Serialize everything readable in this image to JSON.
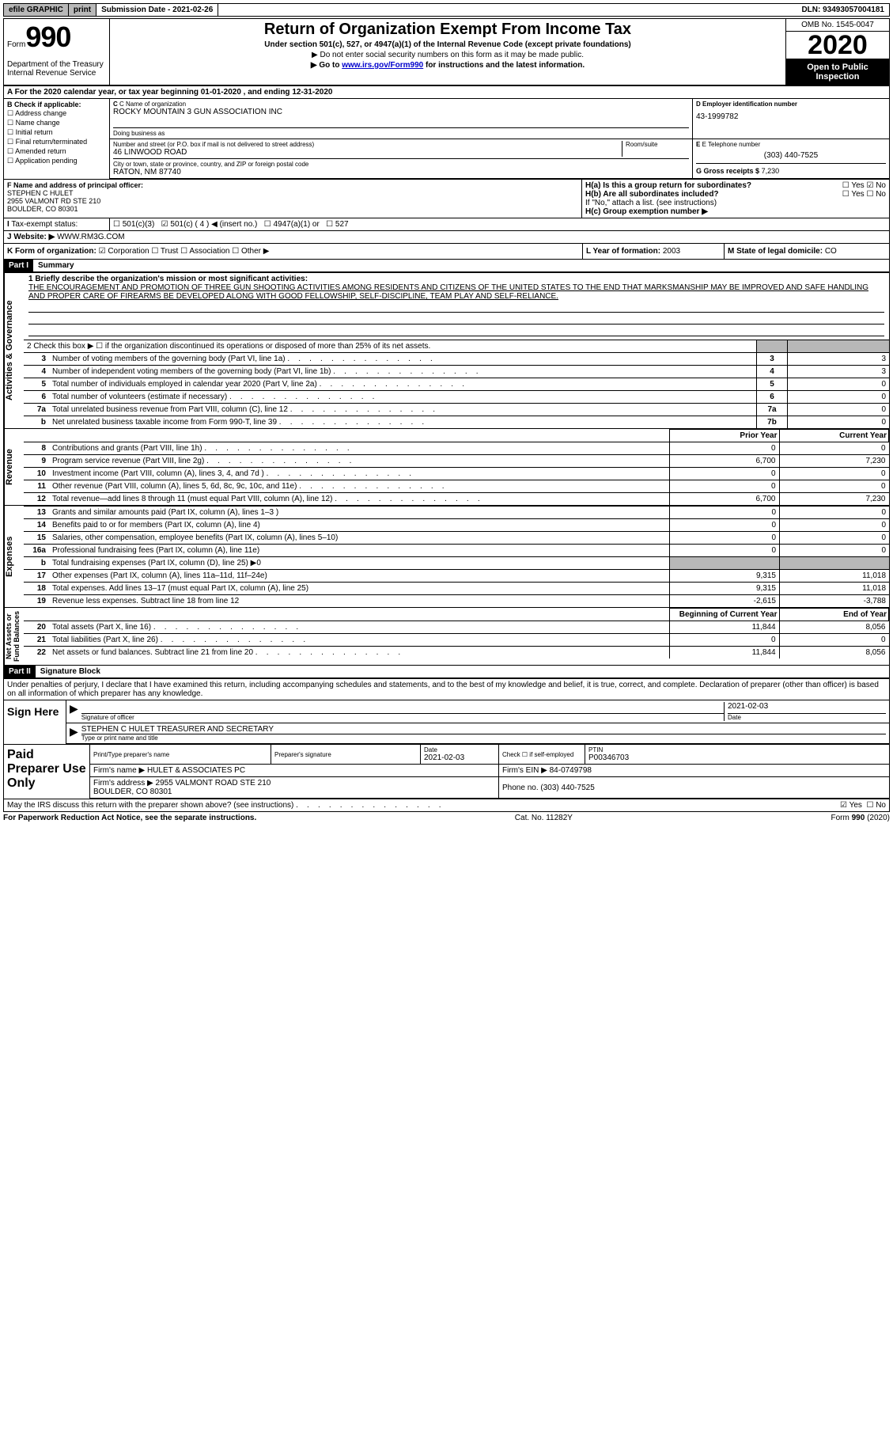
{
  "top_bar": {
    "efile": "efile GRAPHIC",
    "print": "print",
    "submission_label": "Submission Date -",
    "submission_date": "2021-02-26",
    "dln_label": "DLN:",
    "dln": "93493057004181"
  },
  "header": {
    "form_label": "Form",
    "form_number": "990",
    "title": "Return of Organization Exempt From Income Tax",
    "subtitle": "Under section 501(c), 527, or 4947(a)(1) of the Internal Revenue Code (except private foundations)",
    "note1": "▶ Do not enter social security numbers on this form as it may be made public.",
    "note2_pre": "▶ Go to ",
    "note2_link": "www.irs.gov/Form990",
    "note2_post": " for instructions and the latest information.",
    "dept": "Department of the Treasury\nInternal Revenue Service",
    "omb": "OMB No. 1545-0047",
    "year": "2020",
    "open_public": "Open to Public Inspection"
  },
  "line_a": "A For the 2020 calendar year, or tax year beginning 01-01-2020    , and ending 12-31-2020",
  "section_b": {
    "title": "B Check if applicable:",
    "opts": [
      "Address change",
      "Name change",
      "Initial return",
      "Final return/terminated",
      "Amended return",
      "Application pending"
    ]
  },
  "section_c": {
    "name_lbl": "C Name of organization",
    "name": "ROCKY MOUNTAIN 3 GUN ASSOCIATION INC",
    "dba_lbl": "Doing business as",
    "dba": "",
    "addr_lbl": "Number and street (or P.O. box if mail is not delivered to street address)",
    "room_lbl": "Room/suite",
    "addr": "46 LINWOOD ROAD",
    "city_lbl": "City or town, state or province, country, and ZIP or foreign postal code",
    "city": "RATON, NM    87740"
  },
  "section_d": {
    "ein_lbl": "D Employer identification number",
    "ein": "43-1999782",
    "phone_lbl": "E Telephone number",
    "phone": "(303) 440-7525",
    "gross_lbl": "G Gross receipts $",
    "gross": "7,230"
  },
  "section_f": {
    "lbl": "F Name and address of principal officer:",
    "name": "STEPHEN C HULET",
    "addr1": "2955 VALMONT RD STE 210",
    "addr2": "BOULDER, CO   80301"
  },
  "section_h": {
    "ha": "H(a)  Is this a group return for subordinates?",
    "hb": "H(b)  Are all subordinates included?",
    "hb_note": "If \"No,\" attach a list. (see instructions)",
    "hc": "H(c)  Group exemption number ▶",
    "yes": "Yes",
    "no": "No"
  },
  "tax_status": {
    "lbl": "Tax-exempt status:",
    "opts": [
      "501(c)(3)",
      "501(c) ( 4 ) ◀ (insert no.)",
      "4947(a)(1) or",
      "527"
    ]
  },
  "website": {
    "lbl": "J   Website: ▶",
    "val": "WWW.RM3G.COM"
  },
  "k_org": {
    "lbl": "K Form of organization:",
    "opts": [
      "Corporation",
      "Trust",
      "Association",
      "Other ▶"
    ],
    "l_lbl": "L Year of formation:",
    "l_val": "2003",
    "m_lbl": "M State of legal domicile:",
    "m_val": "CO"
  },
  "part1": {
    "hdr": "Part I",
    "title": "Summary",
    "mission_lbl": "1   Briefly describe the organization's mission or most significant activities:",
    "mission": "THE ENCOURAGEMENT AND PROMOTION OF THREE GUN SHOOTING ACTIVITIES AMONG RESIDENTS AND CITIZENS OF THE UNITED STATES TO THE END THAT MARKSMANSHIP MAY BE IMPROVED AND SAFE HANDLING AND PROPER CARE OF FIREARMS BE DEVELOPED ALONG WITH GOOD FELLOWSHIP, SELF-DISCIPLINE, TEAM PLAY AND SELF-RELIANCE.",
    "line2": "2    Check this box ▶ ☐  if the organization discontinued its operations or disposed of more than 25% of its net assets.",
    "gov_lines": [
      {
        "n": "3",
        "txt": "Number of voting members of the governing body (Part VI, line 1a)",
        "box": "3",
        "val": "3"
      },
      {
        "n": "4",
        "txt": "Number of independent voting members of the governing body (Part VI, line 1b)",
        "box": "4",
        "val": "3"
      },
      {
        "n": "5",
        "txt": "Total number of individuals employed in calendar year 2020 (Part V, line 2a)",
        "box": "5",
        "val": "0"
      },
      {
        "n": "6",
        "txt": "Total number of volunteers (estimate if necessary)",
        "box": "6",
        "val": "0"
      },
      {
        "n": "7a",
        "txt": "Total unrelated business revenue from Part VIII, column (C), line 12",
        "box": "7a",
        "val": "0"
      },
      {
        "n": "b",
        "txt": "Net unrelated business taxable income from Form 990-T, line 39",
        "box": "7b",
        "val": "0"
      }
    ],
    "col_prior": "Prior Year",
    "col_curr": "Current Year",
    "rev_lines": [
      {
        "n": "8",
        "txt": "Contributions and grants (Part VIII, line 1h)",
        "p": "0",
        "c": "0"
      },
      {
        "n": "9",
        "txt": "Program service revenue (Part VIII, line 2g)",
        "p": "6,700",
        "c": "7,230"
      },
      {
        "n": "10",
        "txt": "Investment income (Part VIII, column (A), lines 3, 4, and 7d )",
        "p": "0",
        "c": "0"
      },
      {
        "n": "11",
        "txt": "Other revenue (Part VIII, column (A), lines 5, 6d, 8c, 9c, 10c, and 11e)",
        "p": "0",
        "c": "0"
      },
      {
        "n": "12",
        "txt": "Total revenue—add lines 8 through 11 (must equal Part VIII, column (A), line 12)",
        "p": "6,700",
        "c": "7,230"
      }
    ],
    "exp_lines": [
      {
        "n": "13",
        "txt": "Grants and similar amounts paid (Part IX, column (A), lines 1–3 )",
        "p": "0",
        "c": "0"
      },
      {
        "n": "14",
        "txt": "Benefits paid to or for members (Part IX, column (A), line 4)",
        "p": "0",
        "c": "0"
      },
      {
        "n": "15",
        "txt": "Salaries, other compensation, employee benefits (Part IX, column (A), lines 5–10)",
        "p": "0",
        "c": "0"
      },
      {
        "n": "16a",
        "txt": "Professional fundraising fees (Part IX, column (A), line 11e)",
        "p": "0",
        "c": "0"
      },
      {
        "n": "b",
        "txt": "Total fundraising expenses (Part IX, column (D), line 25) ▶0",
        "p": "",
        "c": "",
        "shaded": true
      },
      {
        "n": "17",
        "txt": "Other expenses (Part IX, column (A), lines 11a–11d, 11f–24e)",
        "p": "9,315",
        "c": "11,018"
      },
      {
        "n": "18",
        "txt": "Total expenses. Add lines 13–17 (must equal Part IX, column (A), line 25)",
        "p": "9,315",
        "c": "11,018"
      },
      {
        "n": "19",
        "txt": "Revenue less expenses. Subtract line 18 from line 12",
        "p": "-2,615",
        "c": "-3,788"
      }
    ],
    "col_boy": "Beginning of Current Year",
    "col_eoy": "End of Year",
    "na_lines": [
      {
        "n": "20",
        "txt": "Total assets (Part X, line 16)",
        "p": "11,844",
        "c": "8,056"
      },
      {
        "n": "21",
        "txt": "Total liabilities (Part X, line 26)",
        "p": "0",
        "c": "0"
      },
      {
        "n": "22",
        "txt": "Net assets or fund balances. Subtract line 21 from line 20",
        "p": "11,844",
        "c": "8,056"
      }
    ],
    "vtab_gov": "Activities & Governance",
    "vtab_rev": "Revenue",
    "vtab_exp": "Expenses",
    "vtab_na": "Net Assets or\nFund Balances"
  },
  "part2": {
    "hdr": "Part II",
    "title": "Signature Block",
    "declare": "Under penalties of perjury, I declare that I have examined this return, including accompanying schedules and statements, and to the best of my knowledge and belief, it is true, correct, and complete. Declaration of preparer (other than officer) is based on all information of which preparer has any knowledge.",
    "sign_here": "Sign Here",
    "sig_officer_lbl": "Signature of officer",
    "sig_date": "2021-02-03",
    "date_lbl": "Date",
    "officer_name": "STEPHEN C HULET  TREASURER AND SECRETARY",
    "officer_name_lbl": "Type or print name and title",
    "paid_lbl": "Paid Preparer Use Only",
    "prep_name_lbl": "Print/Type preparer's name",
    "prep_sig_lbl": "Preparer's signature",
    "prep_date_lbl": "Date",
    "prep_date": "2021-02-03",
    "self_emp_lbl": "Check ☐ if self-employed",
    "ptin_lbl": "PTIN",
    "ptin": "P00346703",
    "firm_name_lbl": "Firm's name     ▶",
    "firm_name": "HULET & ASSOCIATES PC",
    "firm_ein_lbl": "Firm's EIN ▶",
    "firm_ein": "84-0749798",
    "firm_addr_lbl": "Firm's address ▶",
    "firm_addr": "2955 VALMONT ROAD STE 210\nBOULDER, CO   80301",
    "firm_phone_lbl": "Phone no.",
    "firm_phone": "(303) 440-7525",
    "discuss": "May the IRS discuss this return with the preparer shown above? (see instructions)",
    "discuss_yes": "Yes",
    "discuss_no": "No"
  },
  "footer": {
    "left": "For Paperwork Reduction Act Notice, see the separate instructions.",
    "mid": "Cat. No. 11282Y",
    "right": "Form 990 (2020)"
  }
}
